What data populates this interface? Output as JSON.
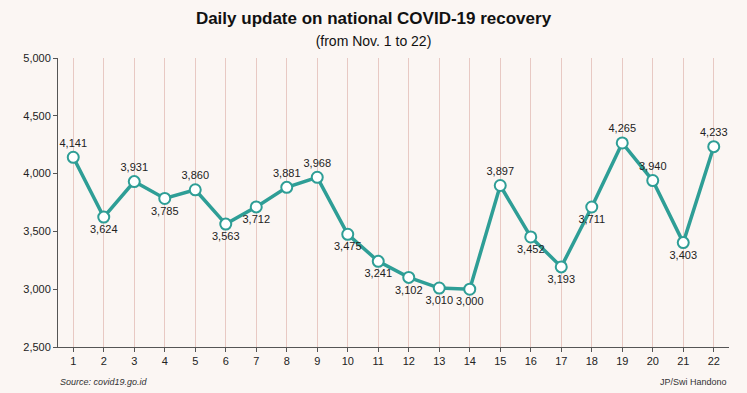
{
  "chart_data": {
    "type": "line",
    "title": "Daily update on national COVID-19 recovery",
    "subtitle": "(from Nov. 1 to 22)",
    "source": "Source: covid19.go.id",
    "credit": "JP/Swi Handono",
    "categories": [
      "1",
      "2",
      "3",
      "4",
      "5",
      "6",
      "7",
      "8",
      "9",
      "10",
      "11",
      "12",
      "13",
      "14",
      "15",
      "16",
      "17",
      "18",
      "19",
      "20",
      "21",
      "22"
    ],
    "values": [
      4141,
      3624,
      3931,
      3785,
      3860,
      3563,
      3712,
      3881,
      3968,
      3475,
      3241,
      3102,
      3010,
      3000,
      3897,
      3452,
      3193,
      3711,
      4265,
      3940,
      3403,
      4233
    ],
    "value_labels": [
      "4,141",
      "3,624",
      "3,931",
      "3,785",
      "3,860",
      "3,563",
      "3,712",
      "3,881",
      "3,968",
      "3,475",
      "3,241",
      "3,102",
      "3,010",
      "3,000",
      "3,897",
      "3,452",
      "3,193",
      "3,711",
      "4,265",
      "3,940",
      "3,403",
      "4,233"
    ],
    "color": "#2e9e96",
    "marker": "circle",
    "ylim": [
      2500,
      5000
    ],
    "yticks": [
      {
        "value": 2500,
        "label": "2,500"
      },
      {
        "value": 3000,
        "label": "3,000"
      },
      {
        "value": 3500,
        "label": "3,500"
      },
      {
        "value": 4000,
        "label": "4,000"
      },
      {
        "value": 4500,
        "label": "4,500"
      },
      {
        "value": 5000,
        "label": "5,000"
      }
    ],
    "grid": true,
    "data_labels": true
  }
}
